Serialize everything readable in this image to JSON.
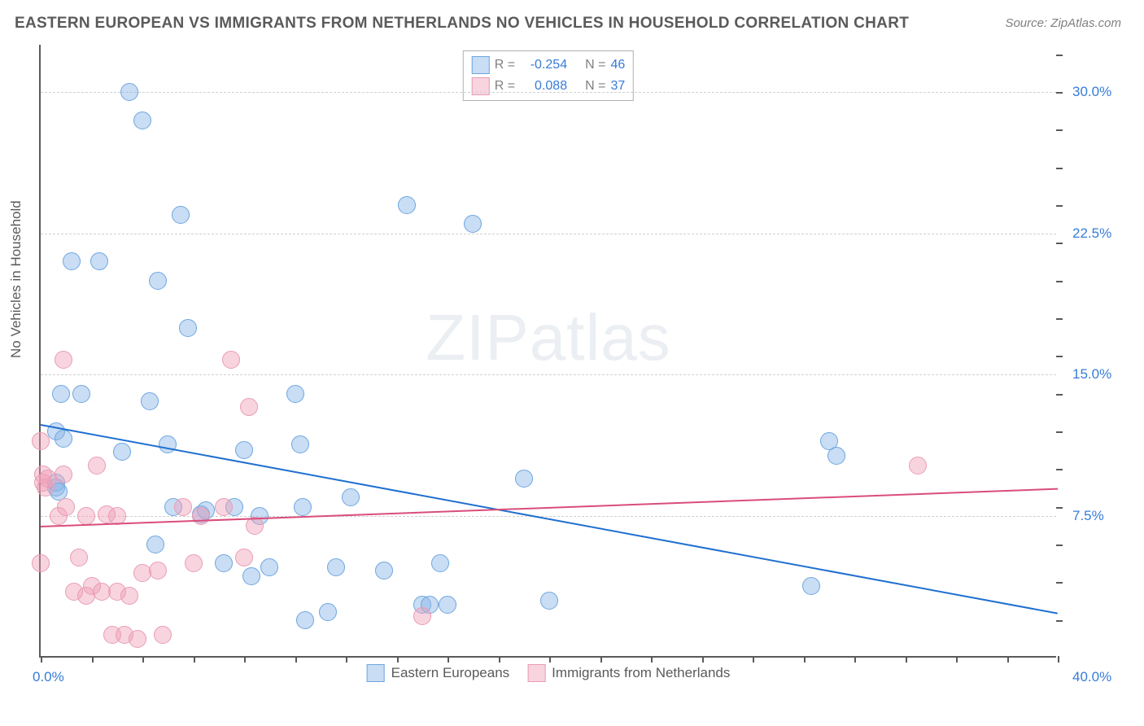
{
  "chart": {
    "type": "scatter",
    "title": "EASTERN EUROPEAN VS IMMIGRANTS FROM NETHERLANDS NO VEHICLES IN HOUSEHOLD CORRELATION CHART",
    "source": "Source: ZipAtlas.com",
    "ylabel": "No Vehicles in Household",
    "watermark": "ZIPatlas",
    "background_color": "#ffffff",
    "grid_color": "#d0d0d0",
    "axis_color": "#5a5a5a",
    "xlim": [
      0,
      40
    ],
    "ylim": [
      0,
      32.5
    ],
    "x_min_label": "0.0%",
    "x_max_label": "40.0%",
    "yticks": [
      {
        "value": 7.5,
        "label": "7.5%"
      },
      {
        "value": 15.0,
        "label": "15.0%"
      },
      {
        "value": 22.5,
        "label": "22.5%"
      },
      {
        "value": 30.0,
        "label": "30.0%"
      }
    ],
    "xtick_positions": [
      0,
      2,
      4,
      6,
      8,
      10,
      12,
      14,
      16,
      18,
      20,
      22,
      24,
      26,
      28,
      30,
      32,
      34,
      36,
      38,
      40
    ],
    "ytick_mark_positions": [
      2,
      4,
      6,
      8,
      10,
      12,
      14,
      16,
      18,
      20,
      22,
      24,
      26,
      28,
      30,
      32
    ],
    "label_fontsize": 17,
    "title_fontsize": 19,
    "series": [
      {
        "name": "Eastern Europeans",
        "fill_color": "rgba(135,180,230,0.45)",
        "stroke_color": "#6da6e0",
        "trend_color": "#1f6fd0",
        "marker_radius": 11,
        "r": "-0.254",
        "n": "46",
        "trend": {
          "x1": 0,
          "y1": 12.4,
          "x2": 40,
          "y2": 2.4
        },
        "points": [
          [
            0.6,
            9.0
          ],
          [
            0.6,
            9.3
          ],
          [
            0.6,
            12.0
          ],
          [
            0.7,
            8.8
          ],
          [
            0.8,
            14.0
          ],
          [
            0.9,
            11.6
          ],
          [
            1.2,
            21.0
          ],
          [
            1.6,
            14.0
          ],
          [
            2.3,
            21.0
          ],
          [
            3.2,
            10.9
          ],
          [
            3.5,
            30.0
          ],
          [
            4.0,
            28.5
          ],
          [
            4.3,
            13.6
          ],
          [
            4.6,
            20.0
          ],
          [
            4.5,
            6.0
          ],
          [
            5.0,
            11.3
          ],
          [
            5.2,
            8.0
          ],
          [
            5.5,
            23.5
          ],
          [
            5.8,
            17.5
          ],
          [
            6.3,
            7.6
          ],
          [
            6.5,
            7.8
          ],
          [
            7.2,
            5.0
          ],
          [
            7.6,
            8.0
          ],
          [
            8.0,
            11.0
          ],
          [
            8.3,
            4.3
          ],
          [
            8.6,
            7.5
          ],
          [
            9.0,
            4.8
          ],
          [
            10.0,
            14.0
          ],
          [
            10.2,
            11.3
          ],
          [
            10.3,
            8.0
          ],
          [
            10.4,
            2.0
          ],
          [
            11.3,
            2.4
          ],
          [
            11.6,
            4.8
          ],
          [
            12.2,
            8.5
          ],
          [
            13.5,
            4.6
          ],
          [
            14.4,
            24.0
          ],
          [
            15.0,
            2.8
          ],
          [
            15.3,
            2.8
          ],
          [
            15.7,
            5.0
          ],
          [
            16.0,
            2.8
          ],
          [
            17.0,
            23.0
          ],
          [
            19.0,
            9.5
          ],
          [
            20.0,
            3.0
          ],
          [
            30.3,
            3.8
          ],
          [
            31.0,
            11.5
          ],
          [
            31.3,
            10.7
          ]
        ]
      },
      {
        "name": "Immigrants from Netherlands",
        "fill_color": "rgba(240,160,185,0.45)",
        "stroke_color": "#e99cb5",
        "trend_color": "#d94d7a",
        "marker_radius": 11,
        "r": "0.088",
        "n": "37",
        "trend": {
          "x1": 0,
          "y1": 7.0,
          "x2": 40,
          "y2": 9.0
        },
        "points": [
          [
            0.0,
            11.5
          ],
          [
            0.0,
            5.0
          ],
          [
            0.1,
            9.3
          ],
          [
            0.1,
            9.7
          ],
          [
            0.2,
            9.0
          ],
          [
            0.3,
            9.5
          ],
          [
            0.7,
            7.5
          ],
          [
            0.9,
            9.7
          ],
          [
            0.9,
            15.8
          ],
          [
            1.0,
            8.0
          ],
          [
            1.3,
            3.5
          ],
          [
            1.5,
            5.3
          ],
          [
            1.8,
            3.3
          ],
          [
            1.8,
            7.5
          ],
          [
            2.0,
            3.8
          ],
          [
            2.2,
            10.2
          ],
          [
            2.4,
            3.5
          ],
          [
            2.6,
            7.6
          ],
          [
            2.8,
            1.2
          ],
          [
            3.0,
            3.5
          ],
          [
            3.0,
            7.5
          ],
          [
            3.3,
            1.2
          ],
          [
            3.5,
            3.3
          ],
          [
            3.8,
            1.0
          ],
          [
            4.0,
            4.5
          ],
          [
            4.6,
            4.6
          ],
          [
            4.8,
            1.2
          ],
          [
            5.6,
            8.0
          ],
          [
            6.0,
            5.0
          ],
          [
            6.3,
            7.5
          ],
          [
            7.2,
            8.0
          ],
          [
            7.5,
            15.8
          ],
          [
            8.0,
            5.3
          ],
          [
            8.2,
            13.3
          ],
          [
            8.4,
            7.0
          ],
          [
            15.0,
            2.2
          ],
          [
            34.5,
            10.2
          ]
        ]
      }
    ],
    "legend_top_labels": {
      "R": "R =",
      "N": "N ="
    },
    "legend_bottom": [
      "Eastern Europeans",
      "Immigrants from Netherlands"
    ]
  }
}
